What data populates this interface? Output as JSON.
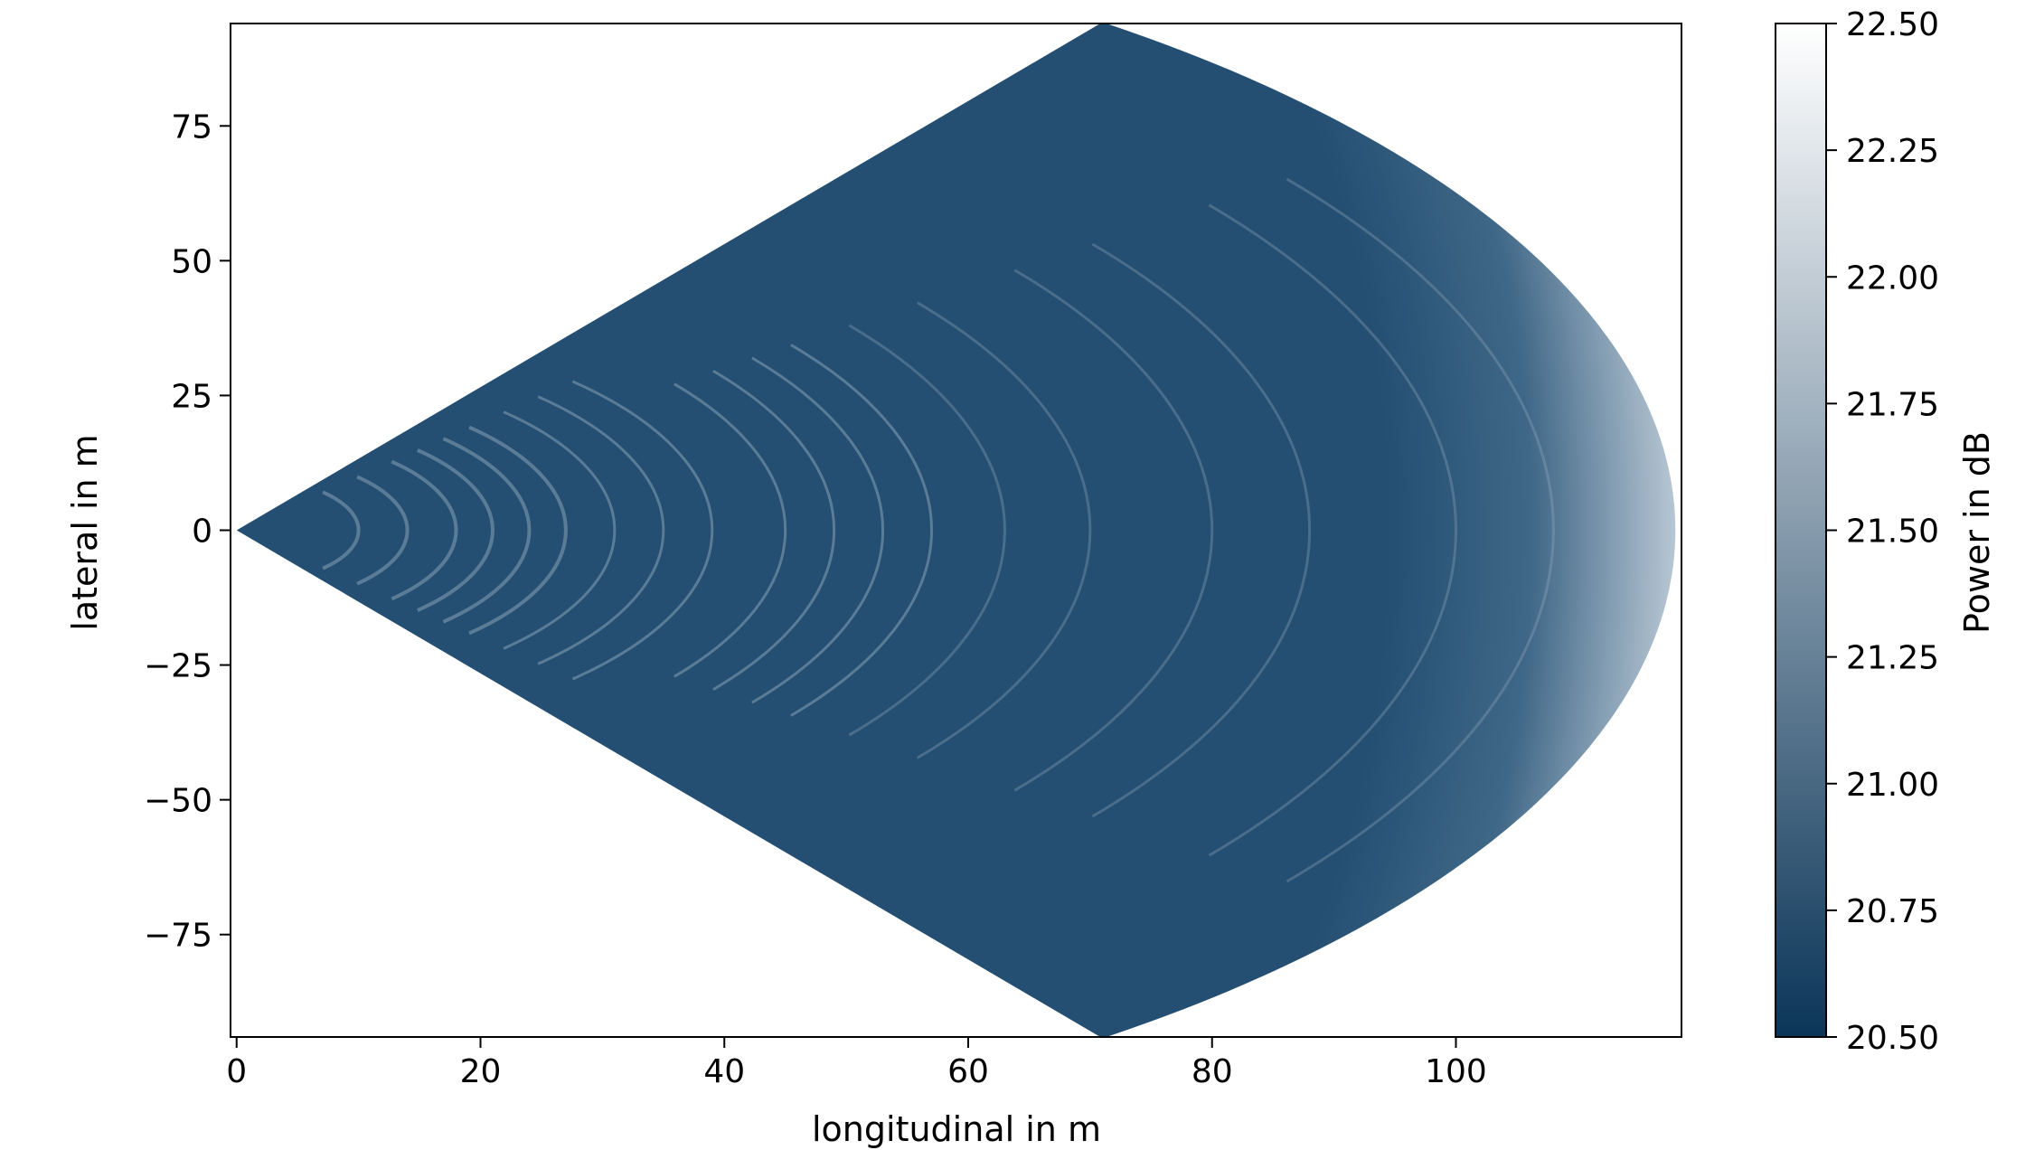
{
  "chart_data": {
    "type": "heatmap",
    "title": "",
    "xlabel": "longitudinal in m",
    "ylabel": "lateral in m",
    "xlim": [
      -0.5,
      118.5
    ],
    "ylim": [
      -94,
      94
    ],
    "x_ticks": [
      0,
      20,
      40,
      60,
      80,
      100
    ],
    "x_tick_labels": [
      "0",
      "20",
      "40",
      "60",
      "80",
      "100"
    ],
    "y_ticks": [
      75,
      50,
      25,
      0,
      -25,
      -50,
      -75
    ],
    "y_tick_labels": [
      "75",
      "50",
      "25",
      "0",
      "−25",
      "−50",
      "−75"
    ],
    "sector": {
      "apex": [
        0,
        0
      ],
      "half_angle_deg": 53,
      "max_range_m": 118
    },
    "range_rings_m": [
      10,
      14,
      18,
      21,
      24,
      27,
      31,
      35,
      39,
      45,
      49,
      53,
      57,
      63,
      70,
      80,
      88,
      100,
      108
    ],
    "grid": false,
    "colorbar": {
      "label": "Power in dB",
      "vmin": 20.5,
      "vmax": 22.5,
      "ticks": [
        20.5,
        20.75,
        21.0,
        21.25,
        21.5,
        21.75,
        22.0,
        22.25,
        22.5
      ],
      "tick_labels": [
        "20.50",
        "20.75",
        "21.00",
        "21.25",
        "21.50",
        "21.75",
        "22.00",
        "22.25",
        "22.50"
      ],
      "color_low": "#0b3558",
      "color_high": "#ffffff"
    },
    "base_color": "#244f72",
    "edge_color": "#b7c6d3",
    "ring_color": "#9fb4c6"
  }
}
